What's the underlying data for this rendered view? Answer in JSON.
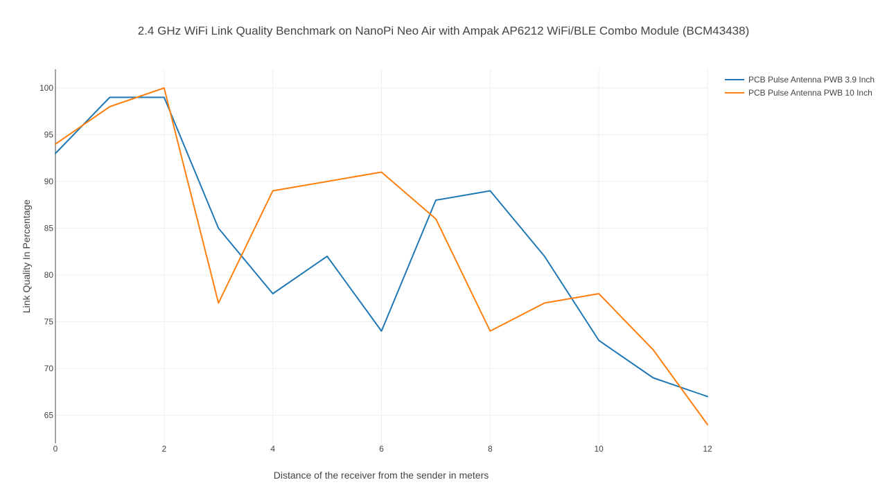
{
  "chart_data": {
    "type": "line",
    "title": "2.4 GHz WiFi Link Quality Benchmark on NanoPi Neo Air with Ampak AP6212 WiFi/BLE Combo Module (BCM43438)",
    "xlabel": "Distance of the receiver from the sender in meters",
    "ylabel": "Link Quality In Percentage",
    "x": [
      0,
      1,
      2,
      3,
      4,
      5,
      6,
      7,
      8,
      9,
      10,
      11,
      12
    ],
    "xlim": [
      0,
      12
    ],
    "ylim": [
      62,
      102
    ],
    "xticks": [
      0,
      2,
      4,
      6,
      8,
      10,
      12
    ],
    "yticks": [
      65,
      70,
      75,
      80,
      85,
      90,
      95,
      100
    ],
    "grid": true,
    "legend": "top-right",
    "series": [
      {
        "name": "PCB Pulse Antenna PWB 3.9 Inch",
        "color": "#1f77b4",
        "values": [
          93,
          99,
          99,
          85,
          78,
          82,
          74,
          88,
          89,
          82,
          73,
          69,
          67
        ]
      },
      {
        "name": "PCB Pulse Antenna PWB 10 Inch",
        "color": "#ff7f0e",
        "values": [
          94,
          98,
          100,
          77,
          89,
          90,
          91,
          86,
          74,
          77,
          78,
          72,
          64
        ]
      }
    ]
  }
}
